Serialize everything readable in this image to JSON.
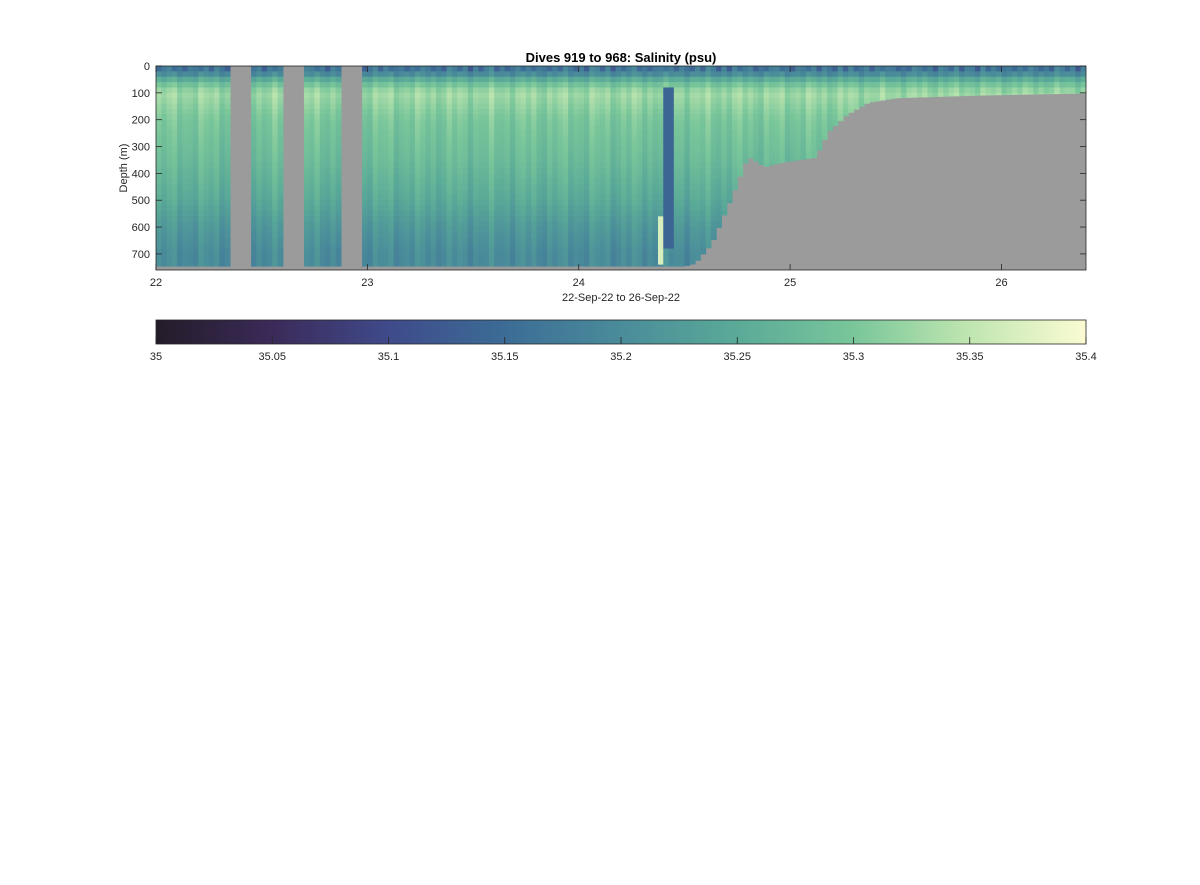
{
  "chart_data": {
    "type": "heatmap",
    "title": "Dives 919 to 968: Salinity (psu)",
    "xlabel": "22-Sep-22 to 26-Sep-22",
    "ylabel": "Depth (m)",
    "xlim": [
      22,
      26.4
    ],
    "ylim": [
      0,
      760
    ],
    "y_reversed": true,
    "x_ticks": [
      22,
      23,
      24,
      25,
      26
    ],
    "x_tick_labels": [
      "22",
      "23",
      "24",
      "25",
      "26"
    ],
    "y_ticks": [
      0,
      100,
      200,
      300,
      400,
      500,
      600,
      700
    ],
    "y_tick_labels": [
      "0",
      "100",
      "200",
      "300",
      "400",
      "500",
      "600",
      "700"
    ],
    "no_data_color": "#9b9b9b",
    "gaps_in_coverage": [
      [
        22.35,
        22.44
      ],
      [
        22.61,
        22.7
      ],
      [
        22.88,
        22.97
      ]
    ],
    "anomalous_profiles": [
      {
        "x_range": [
          24.37,
          24.41
        ],
        "depth_range": [
          560,
          740
        ],
        "salinity": 35.37
      },
      {
        "x_range": [
          24.41,
          24.45
        ],
        "depth_range": [
          90,
          680
        ],
        "salinity": 35.14
      }
    ],
    "profile_max_depth": [
      {
        "day": 22.0,
        "depth": 745
      },
      {
        "day": 24.5,
        "depth": 745
      },
      {
        "day": 24.55,
        "depth": 735
      },
      {
        "day": 24.63,
        "depth": 660
      },
      {
        "day": 24.72,
        "depth": 495
      },
      {
        "day": 24.8,
        "depth": 335
      },
      {
        "day": 24.88,
        "depth": 375
      },
      {
        "day": 24.95,
        "depth": 360
      },
      {
        "day": 25.12,
        "depth": 340
      },
      {
        "day": 25.18,
        "depth": 245
      },
      {
        "day": 25.27,
        "depth": 180
      },
      {
        "day": 25.37,
        "depth": 135
      },
      {
        "day": 25.5,
        "depth": 118
      },
      {
        "day": 25.9,
        "depth": 108
      },
      {
        "day": 26.4,
        "depth": 100
      }
    ],
    "salinity_depth_profile": [
      {
        "depth": 0,
        "value": 35.17
      },
      {
        "depth": 30,
        "value": 35.2
      },
      {
        "depth": 60,
        "value": 35.28
      },
      {
        "depth": 100,
        "value": 35.33
      },
      {
        "depth": 200,
        "value": 35.3
      },
      {
        "depth": 350,
        "value": 35.28
      },
      {
        "depth": 500,
        "value": 35.25
      },
      {
        "depth": 600,
        "value": 35.22
      },
      {
        "depth": 700,
        "value": 35.2
      }
    ],
    "colorbar": {
      "min": 35,
      "max": 35.4,
      "ticks": [
        35,
        35.05,
        35.1,
        35.15,
        35.2,
        35.25,
        35.3,
        35.35,
        35.4
      ],
      "tick_labels": [
        "35",
        "35.05",
        "35.1",
        "35.15",
        "35.2",
        "35.25",
        "35.3",
        "35.35",
        "35.4"
      ],
      "colormap": [
        "#241c28",
        "#3b2a59",
        "#3f4a8a",
        "#3c6c96",
        "#4a8c9a",
        "#5aaa98",
        "#79c69a",
        "#c0e6b0",
        "#fbfbd3"
      ]
    }
  }
}
